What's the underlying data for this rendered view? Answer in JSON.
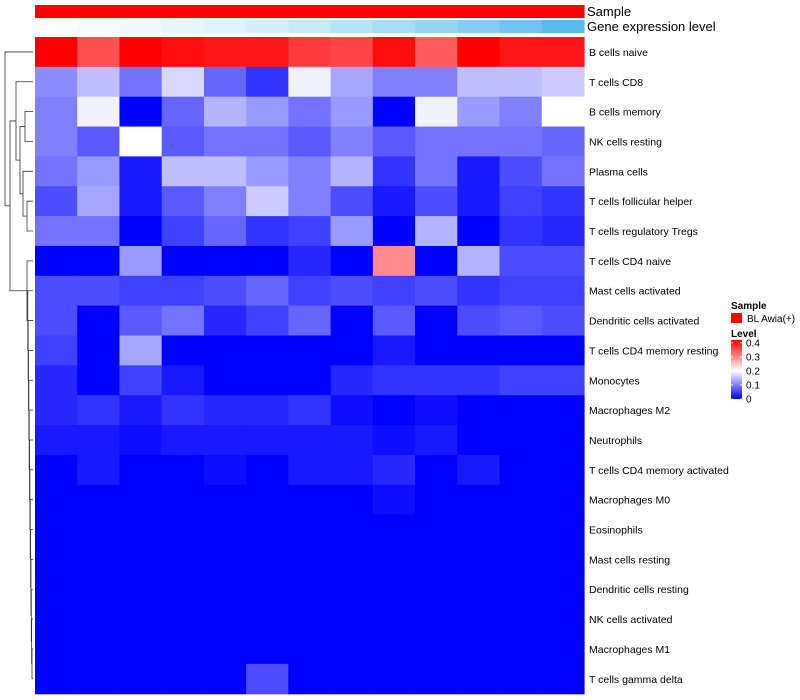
{
  "chart_data": {
    "type": "heatmap",
    "annotation_tracks": [
      {
        "name": "Sample",
        "colors": [
          "#ff0000",
          "#ff0000",
          "#ff0000",
          "#ff0000",
          "#ff0000",
          "#ff0000",
          "#ff0000",
          "#ff0000",
          "#ff0000",
          "#ff0000",
          "#ff0000",
          "#ff0000",
          "#ff0000"
        ]
      },
      {
        "name": "Gene expression level",
        "colors": [
          "#ffffff",
          "#f8fbfd",
          "#f0f8fc",
          "#e8f5fc",
          "#e0f2fb",
          "#d6eef9",
          "#c8e9f8",
          "#b9e3f7",
          "#a8dcf5",
          "#98d5f3",
          "#86ceef",
          "#72c5ed",
          "#58bcea"
        ]
      }
    ],
    "rows": [
      "B cells naive",
      "T cells CD8",
      "B cells memory",
      "NK cells resting",
      "Plasma cells",
      "T cells follicular helper",
      "T cells regulatory  Tregs",
      "T cells CD4 naive",
      "Mast cells activated",
      "Dendritic cells activated",
      "T cells CD4 memory resting",
      "Monocytes",
      "Macrophages M2",
      "Neutrophils",
      "T cells CD4 memory activated",
      "Macrophages M0",
      "Eosinophils",
      "Mast cells resting",
      "Dendritic cells resting",
      "NK cells activated",
      "Macrophages M1",
      "T cells gamma delta"
    ],
    "n_columns": 13,
    "values": [
      [
        0.42,
        0.35,
        0.42,
        0.41,
        0.4,
        0.4,
        0.37,
        0.36,
        0.41,
        0.34,
        0.42,
        0.4,
        0.4
      ],
      [
        0.11,
        0.15,
        0.09,
        0.17,
        0.08,
        0.04,
        0.19,
        0.13,
        0.1,
        0.1,
        0.15,
        0.15,
        0.16
      ],
      [
        0.1,
        0.19,
        0.0,
        0.08,
        0.14,
        0.12,
        0.09,
        0.12,
        0.0,
        0.19,
        0.12,
        0.1,
        0.2
      ],
      [
        0.1,
        0.07,
        0.2,
        0.07,
        0.09,
        0.09,
        0.07,
        0.1,
        0.07,
        0.09,
        0.09,
        0.09,
        0.08
      ],
      [
        0.09,
        0.12,
        0.02,
        0.15,
        0.15,
        0.12,
        0.1,
        0.14,
        0.04,
        0.09,
        0.02,
        0.06,
        0.09
      ],
      [
        0.06,
        0.13,
        0.02,
        0.07,
        0.1,
        0.16,
        0.1,
        0.06,
        0.02,
        0.06,
        0.02,
        0.05,
        0.04
      ],
      [
        0.09,
        0.09,
        0.0,
        0.05,
        0.08,
        0.04,
        0.05,
        0.12,
        0.0,
        0.14,
        0.0,
        0.04,
        0.03
      ],
      [
        0.0,
        0.0,
        0.12,
        0.0,
        0.0,
        0.0,
        0.03,
        0.0,
        0.3,
        0.0,
        0.14,
        0.06,
        0.06
      ],
      [
        0.06,
        0.06,
        0.05,
        0.05,
        0.06,
        0.08,
        0.05,
        0.06,
        0.05,
        0.06,
        0.04,
        0.05,
        0.05
      ],
      [
        0.06,
        0.0,
        0.07,
        0.09,
        0.03,
        0.05,
        0.08,
        0.0,
        0.07,
        0.0,
        0.06,
        0.07,
        0.06
      ],
      [
        0.05,
        0.0,
        0.13,
        0.0,
        0.0,
        0.0,
        0.0,
        0.0,
        0.02,
        0.0,
        0.0,
        0.0,
        0.0
      ],
      [
        0.03,
        0.0,
        0.05,
        0.02,
        0.0,
        0.0,
        0.0,
        0.03,
        0.04,
        0.04,
        0.04,
        0.05,
        0.05
      ],
      [
        0.03,
        0.04,
        0.02,
        0.04,
        0.03,
        0.03,
        0.04,
        0.01,
        0.0,
        0.01,
        0.0,
        0.0,
        0.0
      ],
      [
        0.02,
        0.02,
        0.01,
        0.02,
        0.02,
        0.02,
        0.02,
        0.02,
        0.01,
        0.02,
        0.0,
        0.0,
        0.0
      ],
      [
        0.0,
        0.02,
        0.0,
        0.0,
        0.01,
        0.0,
        0.02,
        0.02,
        0.03,
        0.0,
        0.02,
        0.0,
        0.0
      ],
      [
        0.0,
        0.0,
        0.0,
        0.0,
        0.0,
        0.0,
        0.0,
        0.0,
        0.01,
        0.0,
        0.0,
        0.0,
        0.0
      ],
      [
        0.0,
        0.0,
        0.0,
        0.0,
        0.0,
        0.0,
        0.0,
        0.0,
        0.0,
        0.0,
        0.0,
        0.0,
        0.0
      ],
      [
        0.0,
        0.0,
        0.0,
        0.0,
        0.0,
        0.0,
        0.0,
        0.0,
        0.0,
        0.0,
        0.0,
        0.0,
        0.0
      ],
      [
        0.0,
        0.0,
        0.0,
        0.0,
        0.0,
        0.0,
        0.0,
        0.0,
        0.0,
        0.0,
        0.0,
        0.0,
        0.0
      ],
      [
        0.0,
        0.0,
        0.0,
        0.0,
        0.0,
        0.0,
        0.0,
        0.0,
        0.0,
        0.0,
        0.0,
        0.0,
        0.0
      ],
      [
        0.0,
        0.0,
        0.0,
        0.0,
        0.0,
        0.0,
        0.0,
        0.0,
        0.0,
        0.0,
        0.0,
        0.0,
        0.0
      ],
      [
        0.0,
        0.0,
        0.0,
        0.0,
        0.0,
        0.06,
        0.0,
        0.0,
        0.0,
        0.0,
        0.0,
        0.0,
        0.0
      ]
    ],
    "color_scale": {
      "min": 0,
      "mid": 0.2,
      "max": 0.42,
      "low_color": "#0000ff",
      "mid_color": "#ffffff",
      "high_color": "#ff0000"
    },
    "row_dendrogram": true,
    "legend": {
      "sample_title": "Sample",
      "sample_entry": {
        "label": "BL Awia(+)",
        "color": "#ff0000"
      },
      "level_title": "Level",
      "level_ticks": [
        "0.4",
        "0.3",
        "0.2",
        "0.1",
        "0"
      ],
      "level_tick_values": [
        0.4,
        0.3,
        0.2,
        0.1,
        0
      ],
      "placement": "right"
    }
  }
}
